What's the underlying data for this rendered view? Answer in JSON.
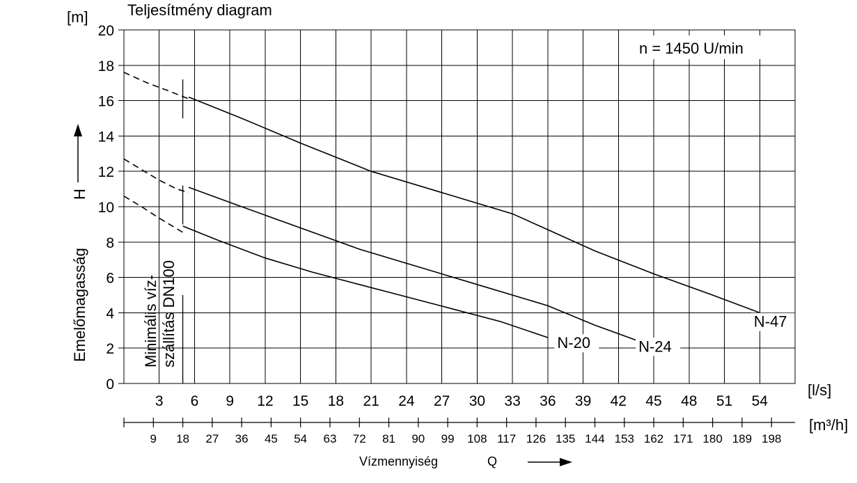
{
  "chart_data": {
    "type": "line",
    "title": "Teljesítmény diagram",
    "annotation": "n = 1450 U/min",
    "ylabel": "Emelőmagasság",
    "ylabel_symbol": "H",
    "y_unit": "[m]",
    "xlabel": "Vízmennyiség",
    "xlabel_symbol": "Q",
    "x_unit": "[l/s]",
    "x2_unit": "[m³/h]",
    "xlim": [
      0,
      57
    ],
    "ylim": [
      0,
      20
    ],
    "grid": true,
    "x_ticks": [
      "3",
      "6",
      "9",
      "12",
      "15",
      "18",
      "21",
      "24",
      "27",
      "30",
      "33",
      "36",
      "39",
      "42",
      "45",
      "48",
      "51",
      "54"
    ],
    "y_ticks": [
      "0",
      "2",
      "4",
      "6",
      "8",
      "10",
      "12",
      "14",
      "16",
      "18",
      "20"
    ],
    "x2_ticks": [
      "9",
      "18",
      "27",
      "36",
      "45",
      "54",
      "63",
      "72",
      "81",
      "90",
      "99",
      "108",
      "117",
      "126",
      "135",
      "144",
      "153",
      "162",
      "171",
      "180",
      "189",
      "198"
    ],
    "min_flow_label_1": "Minimális víz-",
    "min_flow_label_2": "szállítás DN100",
    "min_flow_x": 5,
    "series": [
      {
        "name": "N-20",
        "label_at": [
          36.8,
          2.0
        ],
        "dashed": [
          [
            0,
            10.6
          ],
          [
            1.5,
            10.0
          ],
          [
            3,
            9.35
          ],
          [
            4.5,
            8.75
          ],
          [
            5,
            8.55
          ]
        ],
        "values": [
          [
            5,
            8.9
          ],
          [
            8,
            8.1
          ],
          [
            12,
            7.1
          ],
          [
            16,
            6.3
          ],
          [
            20,
            5.6
          ],
          [
            24,
            4.9
          ],
          [
            28,
            4.2
          ],
          [
            32,
            3.5
          ],
          [
            36,
            2.6
          ]
        ]
      },
      {
        "name": "N-24",
        "label_at": [
          43.7,
          1.8
        ],
        "dashed": [
          [
            0,
            12.7
          ],
          [
            1.5,
            12.1
          ],
          [
            3,
            11.5
          ],
          [
            4.5,
            11.0
          ],
          [
            5.5,
            10.8
          ]
        ],
        "values": [
          [
            5.5,
            11.1
          ],
          [
            10,
            10.0
          ],
          [
            15,
            8.8
          ],
          [
            20,
            7.6
          ],
          [
            25,
            6.6
          ],
          [
            30,
            5.6
          ],
          [
            36,
            4.4
          ],
          [
            40,
            3.3
          ],
          [
            43.7,
            2.4
          ]
        ]
      },
      {
        "name": "N-47",
        "label_at": [
          53.5,
          3.2
        ],
        "dashed": [
          [
            0,
            17.6
          ],
          [
            2,
            17.0
          ],
          [
            4,
            16.5
          ],
          [
            5.5,
            16.1
          ]
        ],
        "values": [
          [
            5.5,
            16.2
          ],
          [
            10,
            15.0
          ],
          [
            15,
            13.6
          ],
          [
            21,
            12.0
          ],
          [
            27,
            10.8
          ],
          [
            33,
            9.6
          ],
          [
            36,
            8.7
          ],
          [
            40,
            7.5
          ],
          [
            45,
            6.2
          ],
          [
            50,
            5.0
          ],
          [
            54,
            4.0
          ]
        ]
      }
    ]
  }
}
